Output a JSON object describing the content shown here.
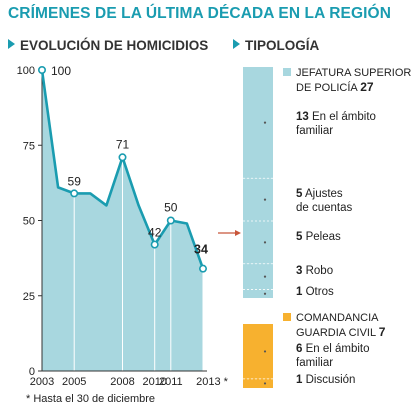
{
  "title": "CRÍMENES DE LA ÚLTIMA DÉCADA EN LA REGIÓN",
  "left_section": "EVOLUCIÓN DE HOMICIDIOS",
  "right_section": "TIPOLOGÍA",
  "footnote": "* Hasta el 30 de diciembre",
  "colors": {
    "accent": "#1a9cb0",
    "area": "#a8d7df",
    "line": "#1a9cb0",
    "orange": "#f7b12f",
    "arrow": "#c8563a"
  },
  "chart_data": [
    {
      "type": "area",
      "title": "EVOLUCIÓN DE HOMICIDIOS",
      "x": [
        2003,
        2004,
        2005,
        2006,
        2007,
        2008,
        2009,
        2010,
        2011,
        2012,
        2013
      ],
      "values": [
        100,
        61,
        59,
        59,
        55,
        71,
        55,
        42,
        50,
        49,
        34
      ],
      "data_labels": [
        {
          "year": 2003,
          "text": "100"
        },
        {
          "year": 2005,
          "text": "59"
        },
        {
          "year": 2008,
          "text": "71"
        },
        {
          "year": 2010,
          "text": "42"
        },
        {
          "year": 2011,
          "text": "50"
        },
        {
          "year": 2013,
          "text": "34",
          "bold": true
        }
      ],
      "marked_years": [
        2003,
        2005,
        2008,
        2010,
        2011,
        2013
      ],
      "x_tick_labels": [
        "2003",
        "2005",
        "2008",
        "2010",
        "2011",
        "2013 *"
      ],
      "y_ticks": [
        0,
        25,
        50,
        75,
        100
      ],
      "ylim": [
        0,
        100
      ],
      "grid": false
    },
    {
      "type": "bar",
      "title": "TIPOLOGÍA",
      "stacked": true,
      "groups": [
        {
          "name": "JEFATURA SUPERIOR DE POLICÍA",
          "name_lines": "JEFATURA SUPERIOR\nDE POLICÍA",
          "total": 27,
          "color": "#a8d7df",
          "segments": [
            {
              "label": "En el ámbito familiar",
              "text": "En el ámbito\nfamiliar",
              "value": 13
            },
            {
              "label": "Ajustes de cuentas",
              "text": "Ajustes\nde cuentas",
              "value": 5
            },
            {
              "label": "Peleas",
              "text": "Peleas",
              "value": 5
            },
            {
              "label": "Robo",
              "text": "Robo",
              "value": 3
            },
            {
              "label": "Otros",
              "text": "Otros",
              "value": 1
            }
          ]
        },
        {
          "name": "COMANDANCIA GUARDIA CIVIL",
          "name_lines": "COMANDANCIA\nGUARDIA CIVIL",
          "total": 7,
          "color": "#f7b12f",
          "segments": [
            {
              "label": "En el ámbito familiar",
              "text": "En el ámbito\nfamiliar",
              "value": 6
            },
            {
              "label": "Discusión",
              "text": "Discusión",
              "value": 1
            }
          ]
        }
      ]
    }
  ]
}
